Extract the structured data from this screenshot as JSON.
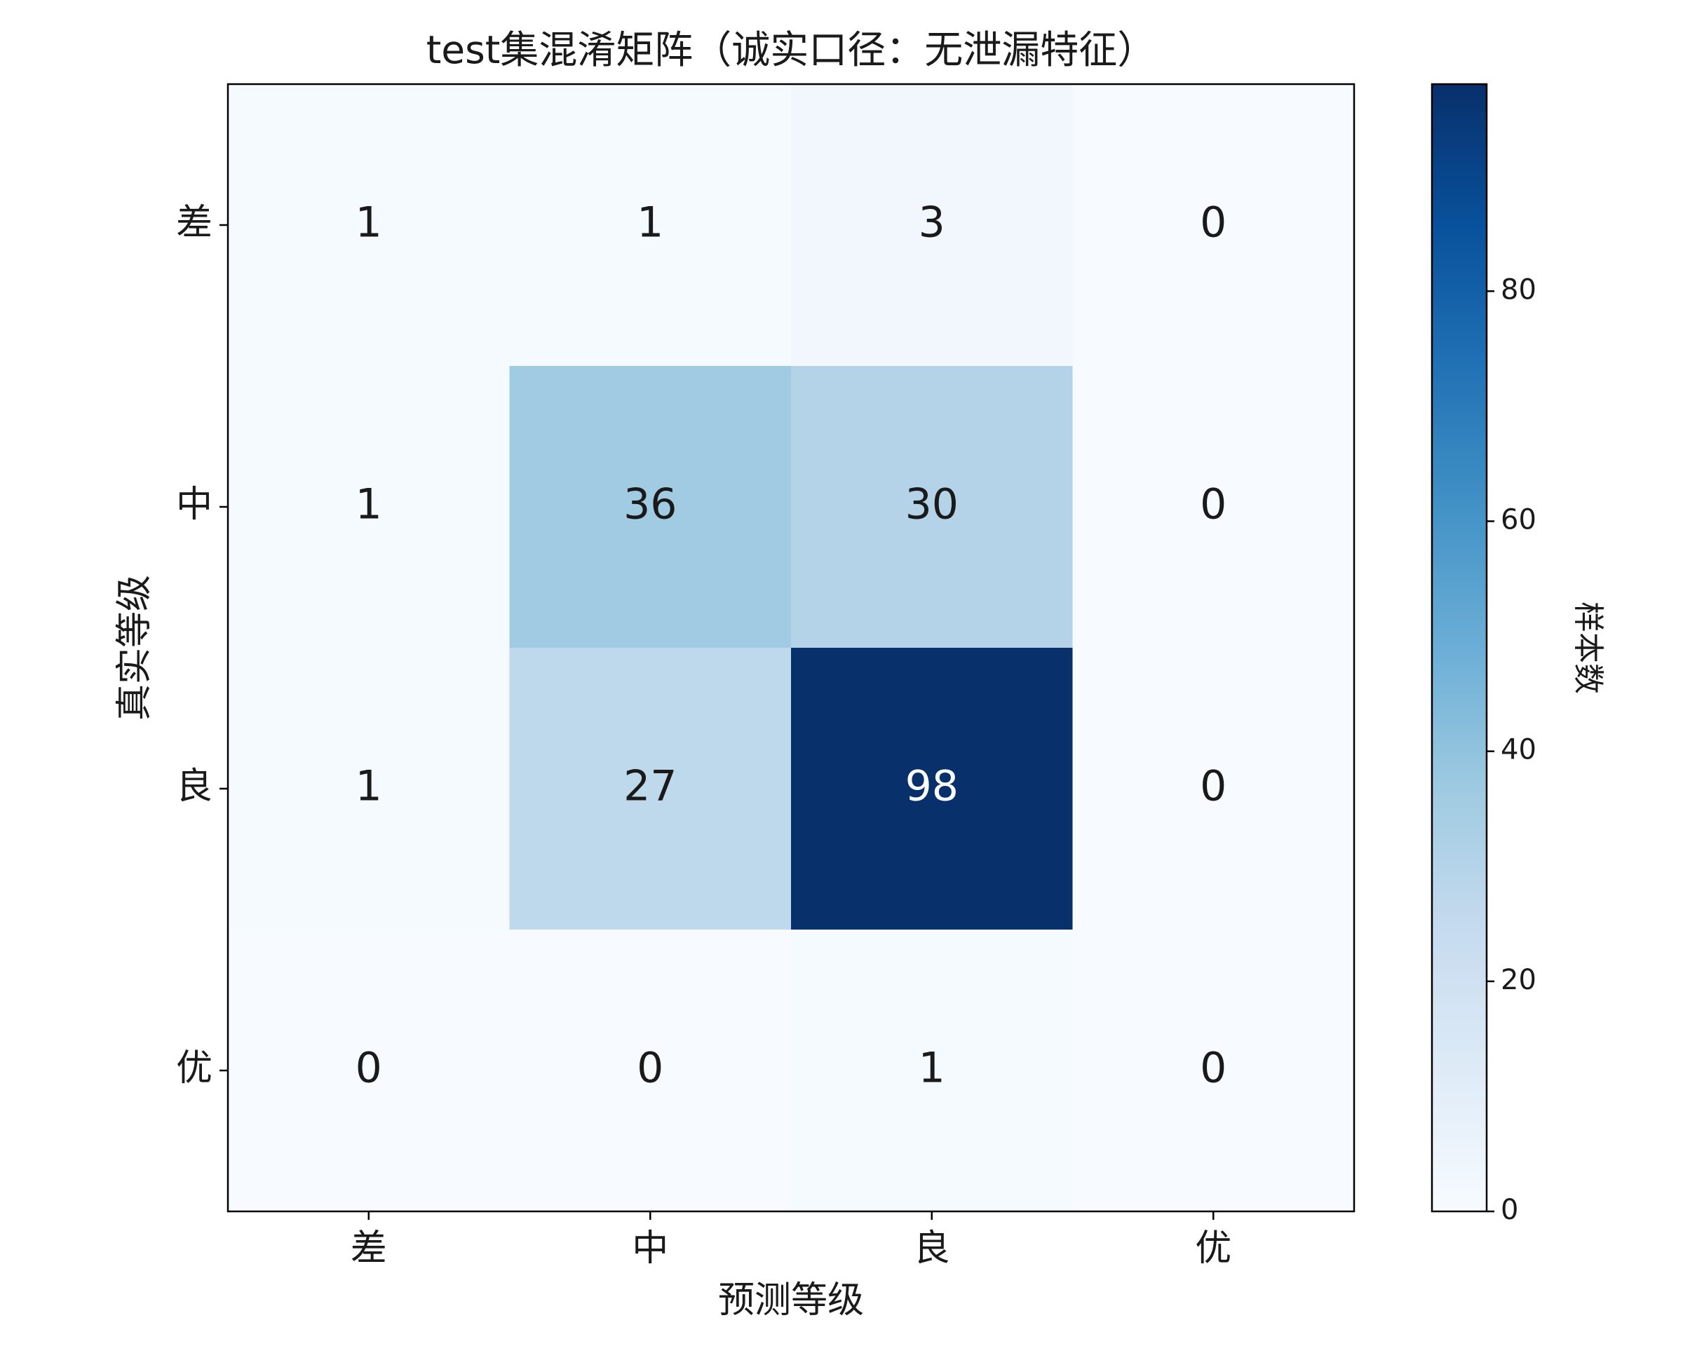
{
  "chart_data": {
    "type": "heatmap",
    "title": "test集混淆矩阵（诚实口径：无泄漏特征）",
    "x_label": "预测等级",
    "y_label": "真实等级",
    "x_categories": [
      "差",
      "中",
      "良",
      "优"
    ],
    "y_categories": [
      "差",
      "中",
      "良",
      "优"
    ],
    "values": [
      [
        1,
        1,
        3,
        0
      ],
      [
        1,
        36,
        30,
        0
      ],
      [
        1,
        27,
        98,
        0
      ],
      [
        0,
        0,
        1,
        0
      ]
    ],
    "colormap": "Blues",
    "zlim": [
      0,
      98
    ],
    "zticks": [
      0,
      20,
      40,
      60,
      80
    ],
    "colorbar_label": "样本数"
  }
}
